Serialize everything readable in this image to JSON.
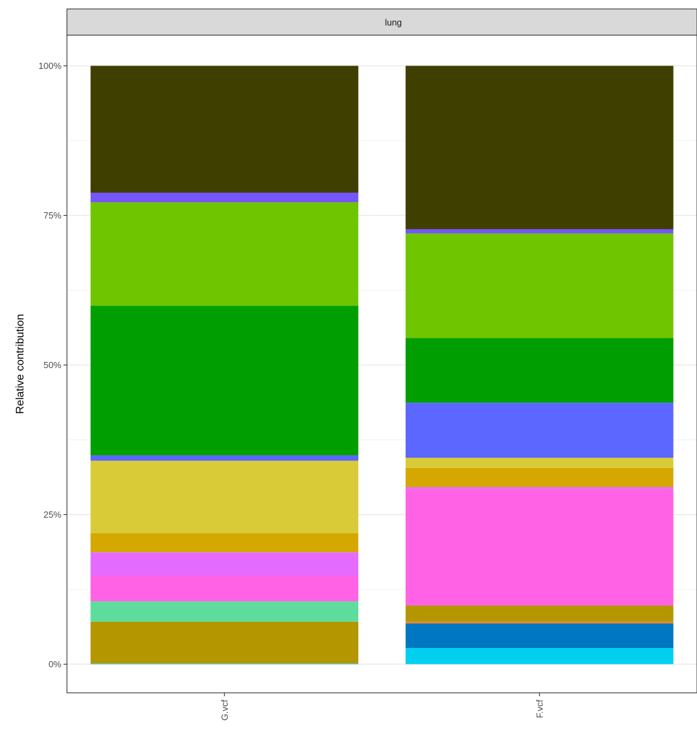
{
  "chart_data": {
    "type": "bar",
    "stacked": true,
    "facet_label": "lung",
    "ylabel": "Relative contribution",
    "ylim": [
      0,
      100
    ],
    "y_ticks": [
      0,
      25,
      50,
      75,
      100
    ],
    "y_tick_labels": [
      "0%",
      "25%",
      "50%",
      "75%",
      "100%"
    ],
    "categories": [
      "G.vcf",
      "F.vcf"
    ],
    "grid": true,
    "series": [
      {
        "color": "#00CFEF",
        "values": [
          0.1,
          2.7
        ]
      },
      {
        "color": "#0077C2",
        "values": [
          0.0,
          4.1
        ]
      },
      {
        "color": "#E08A30",
        "values": [
          0.0,
          0.4
        ]
      },
      {
        "color": "#B39600",
        "values": [
          7.0,
          2.6
        ]
      },
      {
        "color": "#5EDC9E",
        "values": [
          3.4,
          0.0
        ]
      },
      {
        "color": "#FF62E4",
        "values": [
          4.3,
          19.5
        ]
      },
      {
        "color": "#E56BFF",
        "values": [
          3.9,
          0.3
        ]
      },
      {
        "color": "#D4A800",
        "values": [
          3.2,
          3.2
        ]
      },
      {
        "color": "#D9CB38",
        "values": [
          12.1,
          1.7
        ]
      },
      {
        "color": "#5B67FF",
        "values": [
          0.9,
          9.2
        ]
      },
      {
        "color": "#009E00",
        "values": [
          25.0,
          10.8
        ]
      },
      {
        "color": "#6FC500",
        "values": [
          17.3,
          17.5
        ]
      },
      {
        "color": "#7556F9",
        "values": [
          1.6,
          0.7
        ]
      },
      {
        "color": "#3F3F00",
        "values": [
          21.2,
          27.3
        ]
      }
    ]
  }
}
